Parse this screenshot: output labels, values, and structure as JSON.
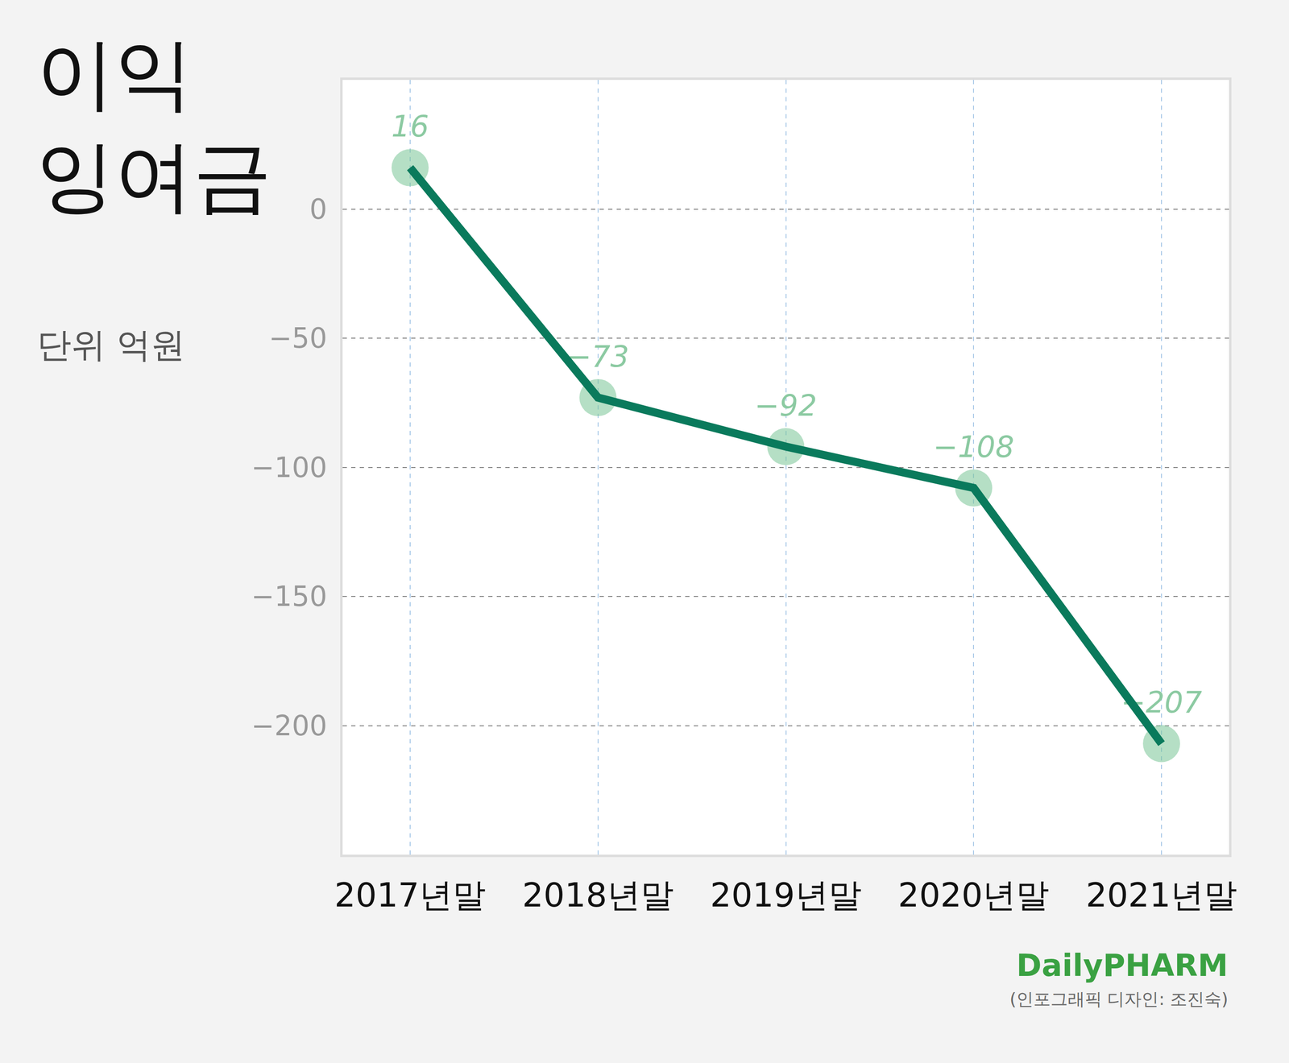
{
  "chart_data": {
    "type": "line",
    "title": "이익 잉여금",
    "subtitle": "단위 억원",
    "categories": [
      "2017년말",
      "2018년말",
      "2019년말",
      "2020년말",
      "2021년말"
    ],
    "values": [
      16,
      -73,
      -92,
      -108,
      -207
    ],
    "value_labels": [
      "16",
      "−73",
      "−92",
      "−108",
      "−207"
    ],
    "color": "#0a7a5c",
    "marker": "circle",
    "line_style": "solid",
    "data_labels": true,
    "grid": true,
    "ylim": [
      -250,
      50
    ],
    "yticks": [
      {
        "value": 0,
        "label": "0"
      },
      {
        "value": -50,
        "label": "−50"
      },
      {
        "value": -100,
        "label": "−100"
      },
      {
        "value": -150,
        "label": "−150"
      },
      {
        "value": -200,
        "label": "−200"
      }
    ],
    "annotations": [
      "DailyPHARM",
      "(인포그래픽 디자인: 조진숙)"
    ]
  }
}
